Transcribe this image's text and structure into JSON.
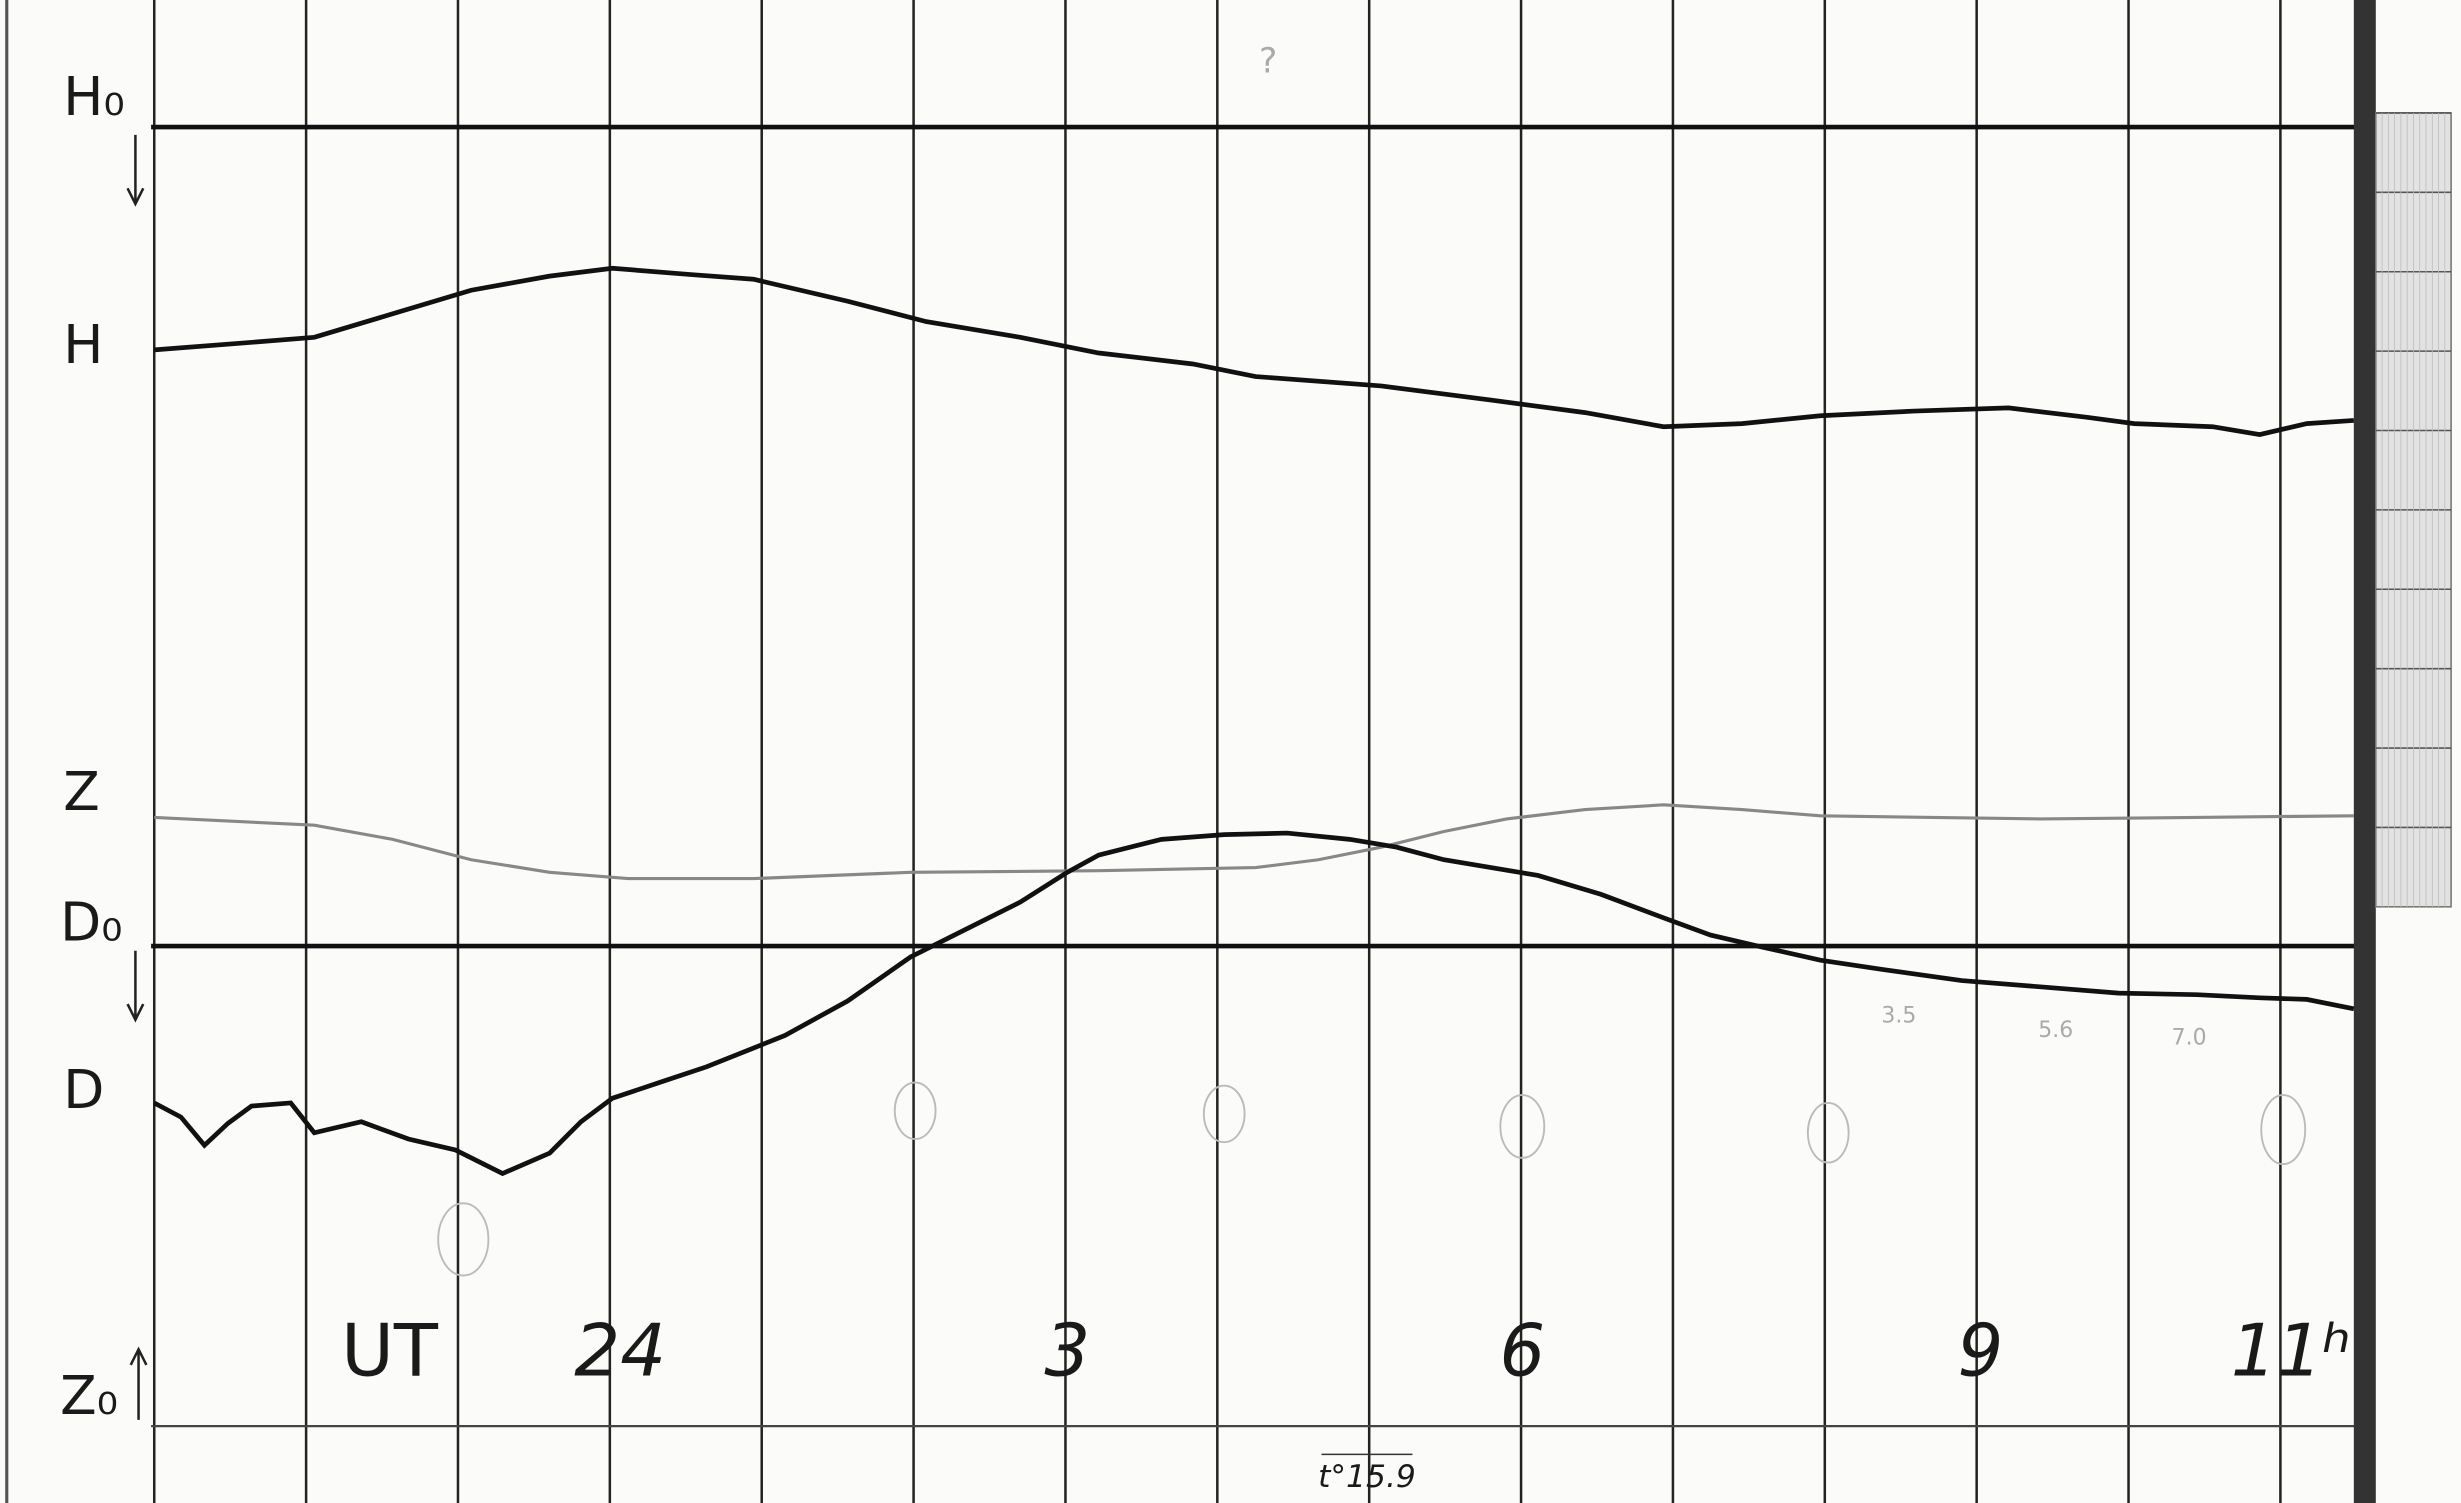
{
  "labels": {
    "h0": "H₀",
    "h": "H",
    "z": "Z",
    "d0": "D₀",
    "d": "D",
    "z0": "Z₀"
  },
  "time_axis": {
    "title": "UT",
    "hours": [
      "24",
      "3",
      "6",
      "9",
      "11ʰ"
    ]
  },
  "temperature": "t°15.9",
  "pencil_notes": [
    "3.5",
    "5.6",
    "7.0",
    "?"
  ]
}
